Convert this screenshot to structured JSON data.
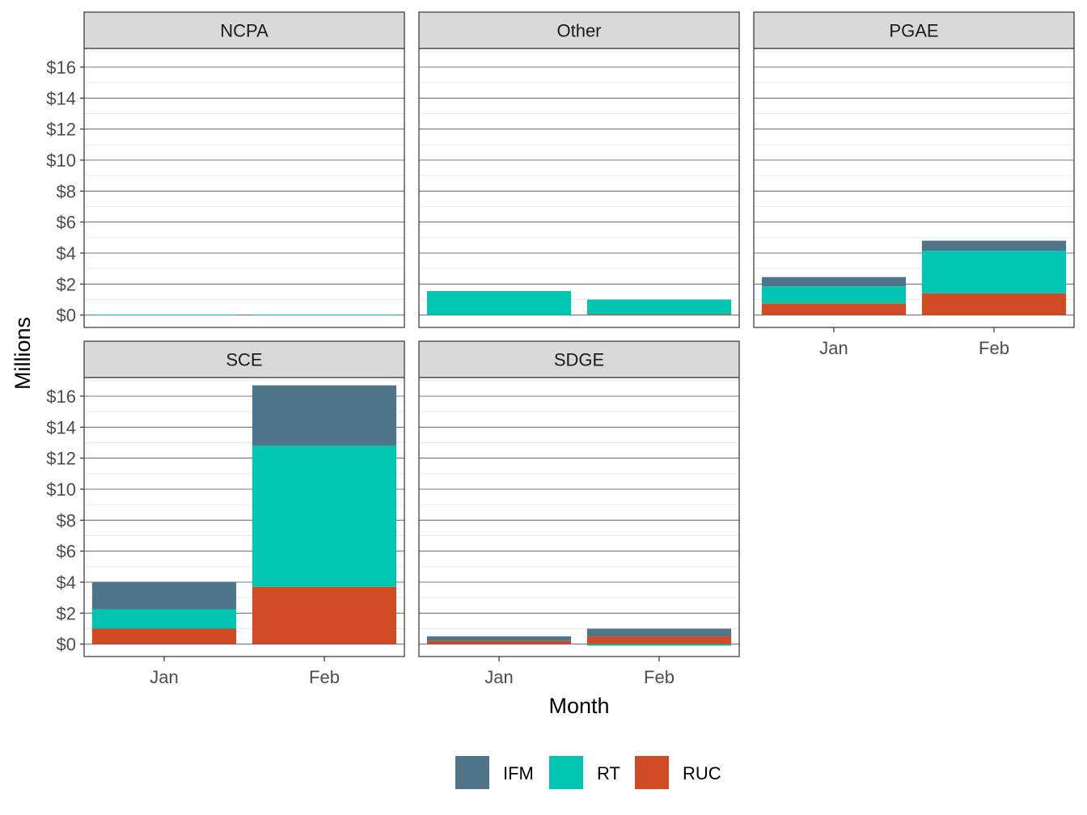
{
  "chart_data": {
    "type": "bar",
    "stacked": true,
    "categories": [
      "Jan",
      "Feb"
    ],
    "xlabel": "Month",
    "ylabel": "Millions",
    "ylim": [
      -0.8,
      17.2
    ],
    "yticks": [
      0,
      2,
      4,
      6,
      8,
      10,
      12,
      14,
      16
    ],
    "ytick_labels": [
      "$0",
      "$2",
      "$4",
      "$6",
      "$8",
      "$10",
      "$12",
      "$14",
      "$16"
    ],
    "grid": true,
    "legend_position": "bottom",
    "series": [
      {
        "name": "IFM",
        "color": "#4e7589"
      },
      {
        "name": "RT",
        "color": "#00c5b0"
      },
      {
        "name": "RUC",
        "color": "#d04a23"
      }
    ],
    "panels": [
      {
        "name": "NCPA",
        "values": {
          "RUC": [
            0.0,
            0.0
          ],
          "RT": [
            0.02,
            0.02
          ],
          "IFM": [
            0.0,
            0.0
          ]
        }
      },
      {
        "name": "Other",
        "values": {
          "RUC": [
            0.0,
            0.05
          ],
          "RT": [
            1.55,
            0.95
          ],
          "IFM": [
            0.0,
            0.0
          ]
        }
      },
      {
        "name": "PGAE",
        "values": {
          "RUC": [
            0.75,
            1.4
          ],
          "RT": [
            1.1,
            2.75
          ],
          "IFM": [
            0.6,
            0.65
          ]
        }
      },
      {
        "name": "SCE",
        "values": {
          "RUC": [
            1.0,
            3.7
          ],
          "RT": [
            1.25,
            9.1
          ],
          "IFM": [
            1.75,
            3.9
          ]
        }
      },
      {
        "name": "SDGE",
        "values": {
          "RUC": [
            0.2,
            0.5
          ],
          "RT": [
            0.0,
            -0.1
          ],
          "IFM": [
            0.3,
            0.5
          ]
        }
      }
    ]
  }
}
